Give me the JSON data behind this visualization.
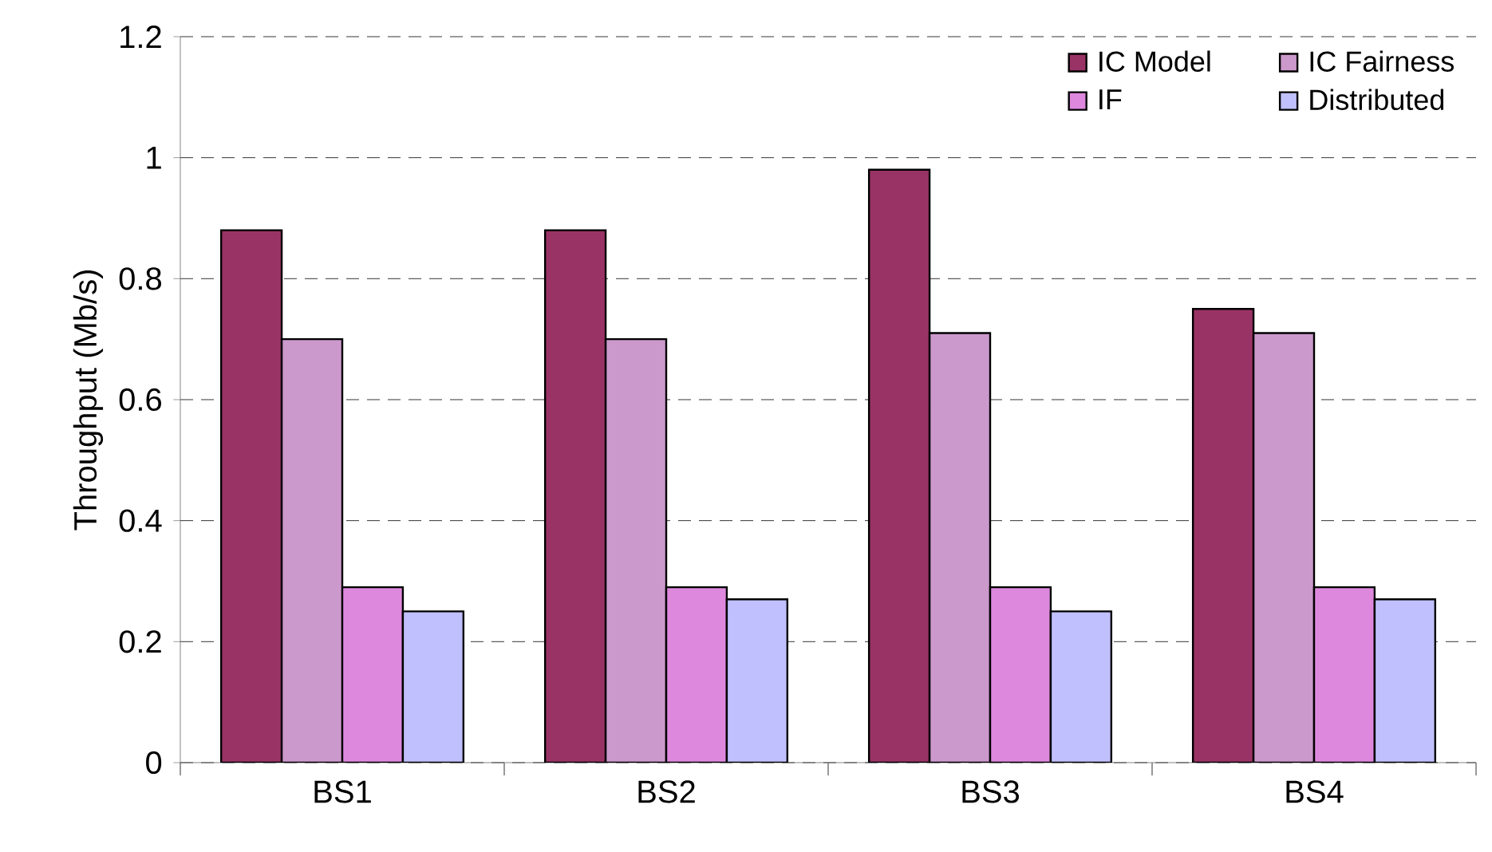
{
  "chart_data": {
    "type": "bar",
    "ylabel": "Throughput (Mb/s)",
    "categories": [
      "BS1",
      "BS2",
      "BS3",
      "BS4"
    ],
    "series": [
      {
        "name": "IC Model",
        "color": "#993366",
        "values": [
          0.88,
          0.88,
          0.98,
          0.75
        ]
      },
      {
        "name": "IC Fairness",
        "color": "#cc99cc",
        "values": [
          0.7,
          0.7,
          0.71,
          0.71
        ]
      },
      {
        "name": "IF",
        "color": "#dd88dd",
        "values": [
          0.29,
          0.29,
          0.29,
          0.29
        ]
      },
      {
        "name": "Distributed",
        "color": "#c0c0ff",
        "values": [
          0.25,
          0.27,
          0.25,
          0.27
        ]
      }
    ],
    "ylim": [
      0,
      1.2
    ],
    "yticks": [
      0,
      0.2,
      0.4,
      0.6,
      0.8,
      1,
      1.2
    ],
    "grid": "y",
    "legend": "top right"
  }
}
